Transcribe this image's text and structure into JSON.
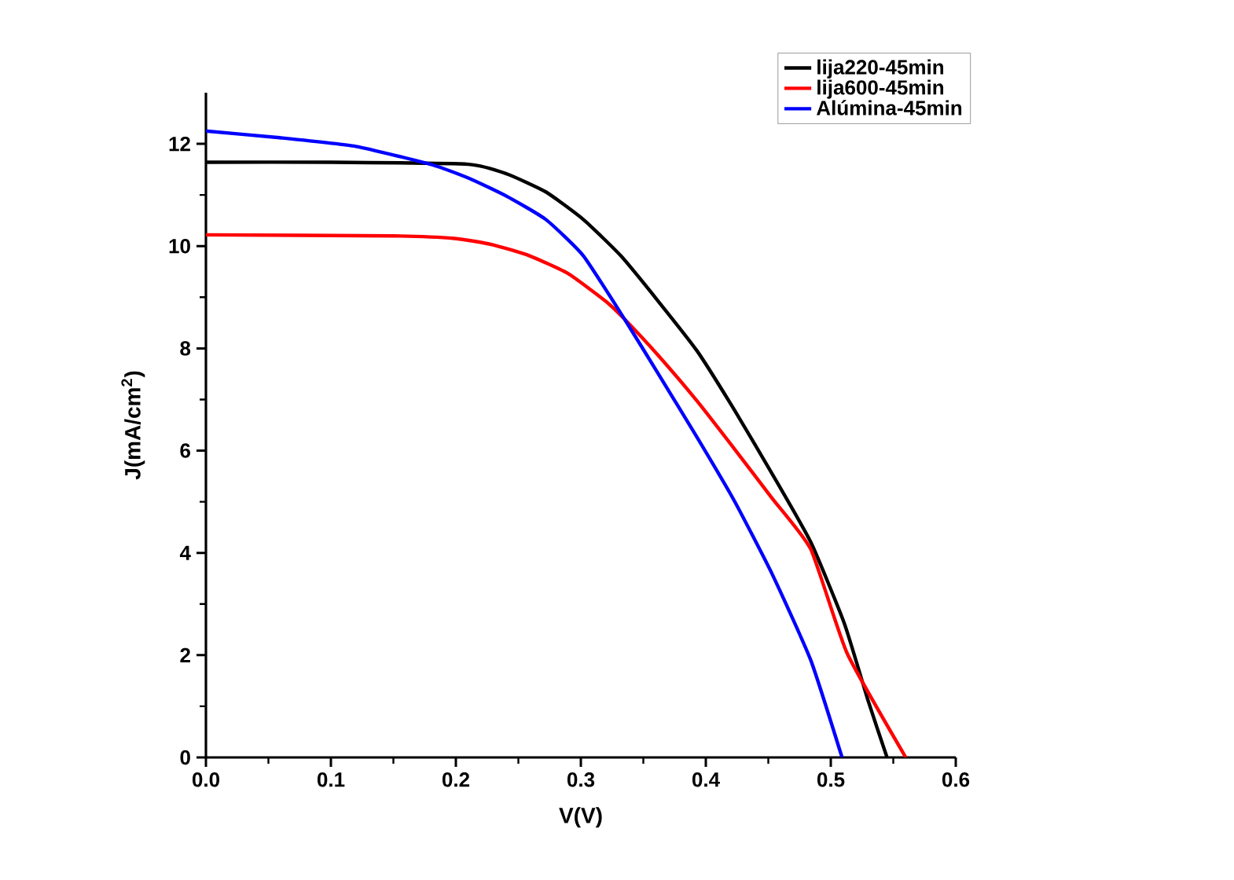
{
  "chart_data": {
    "type": "line",
    "xlabel": "V(V)",
    "ylabel": "J(mA/cm$^{2}$)",
    "xlim": [
      0,
      0.6
    ],
    "ylim": [
      0,
      13
    ],
    "xticks": [
      {
        "value": 0,
        "label": "0.0"
      },
      0.1,
      0.2,
      0.3,
      0.4,
      0.5,
      0.6
    ],
    "yticks": [
      0,
      2,
      4,
      6,
      8,
      10,
      12
    ],
    "grid": false,
    "legend": "top right",
    "marker": "none",
    "line_style": "solid",
    "series": [
      {
        "name": "lija220-45min",
        "color": "#000000",
        "x": [
          0,
          0.1,
          0.21,
          0.241,
          0.272,
          0.302,
          0.332,
          0.362,
          0.393,
          0.423,
          0.453,
          0.484,
          0.511,
          0.53,
          0.545
        ],
        "values": [
          11.64,
          11.64,
          11.6,
          11.41,
          11.06,
          10.52,
          9.81,
          8.92,
          7.95,
          6.79,
          5.55,
          4.21,
          2.61,
          1.1,
          0
        ]
      },
      {
        "name": "lija600-45min",
        "color": "#ff0000",
        "x": [
          0,
          0.15,
          0.199,
          0.229,
          0.259,
          0.29,
          0.32,
          0.335,
          0.362,
          0.393,
          0.423,
          0.453,
          0.484,
          0.513,
          0.56
        ],
        "values": [
          10.22,
          10.2,
          10.15,
          10.03,
          9.81,
          9.46,
          8.92,
          8.57,
          7.86,
          6.97,
          6.03,
          5.07,
          4.07,
          2.04,
          0
        ]
      },
      {
        "name": "Alúmina-45min",
        "color": "#0000ff",
        "x": [
          0,
          0.059,
          0.12,
          0.181,
          0.211,
          0.241,
          0.272,
          0.302,
          0.335,
          0.362,
          0.393,
          0.423,
          0.453,
          0.484,
          0.509
        ],
        "values": [
          12.25,
          12.12,
          11.95,
          11.59,
          11.32,
          10.97,
          10.52,
          9.81,
          8.57,
          7.5,
          6.26,
          5.01,
          3.59,
          1.9,
          0
        ]
      }
    ]
  }
}
